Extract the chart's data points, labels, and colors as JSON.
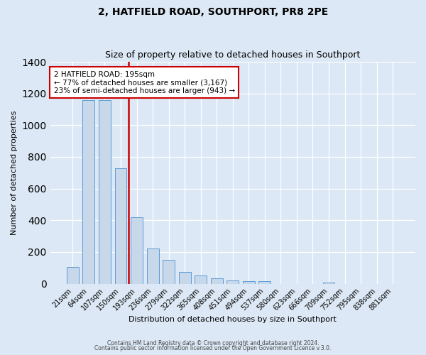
{
  "title1": "2, HATFIELD ROAD, SOUTHPORT, PR8 2PE",
  "title2": "Size of property relative to detached houses in Southport",
  "xlabel": "Distribution of detached houses by size in Southport",
  "ylabel": "Number of detached properties",
  "categories": [
    "21sqm",
    "64sqm",
    "107sqm",
    "150sqm",
    "193sqm",
    "236sqm",
    "279sqm",
    "322sqm",
    "365sqm",
    "408sqm",
    "451sqm",
    "494sqm",
    "537sqm",
    "580sqm",
    "623sqm",
    "666sqm",
    "709sqm",
    "752sqm",
    "795sqm",
    "838sqm",
    "881sqm"
  ],
  "values": [
    107,
    1160,
    1160,
    730,
    420,
    220,
    150,
    75,
    50,
    35,
    20,
    15,
    15,
    0,
    0,
    0,
    5,
    0,
    0,
    0,
    0
  ],
  "bar_color": "#c8d8eb",
  "bar_edge_color": "#5b9bd5",
  "annotation_title": "2 HATFIELD ROAD: 195sqm",
  "annotation_line1": "← 77% of detached houses are smaller (3,167)",
  "annotation_line2": "23% of semi-detached houses are larger (943) →",
  "annotation_box_color": "#ffffff",
  "annotation_box_edge": "#cc0000",
  "vline_color": "#cc0000",
  "vline_bin": 4,
  "ylim": [
    0,
    1400
  ],
  "yticks": [
    0,
    200,
    400,
    600,
    800,
    1000,
    1200,
    1400
  ],
  "footer1": "Contains HM Land Registry data © Crown copyright and database right 2024.",
  "footer2": "Contains public sector information licensed under the Open Government Licence v.3.0.",
  "bg_color": "#dce8f5",
  "plot_bg_color": "#dce8f5",
  "grid_color": "#ffffff",
  "title1_fontsize": 10,
  "title2_fontsize": 9,
  "xlabel_fontsize": 8,
  "ylabel_fontsize": 8,
  "tick_fontsize": 7,
  "annot_fontsize": 7.5,
  "footer_fontsize": 5.5
}
